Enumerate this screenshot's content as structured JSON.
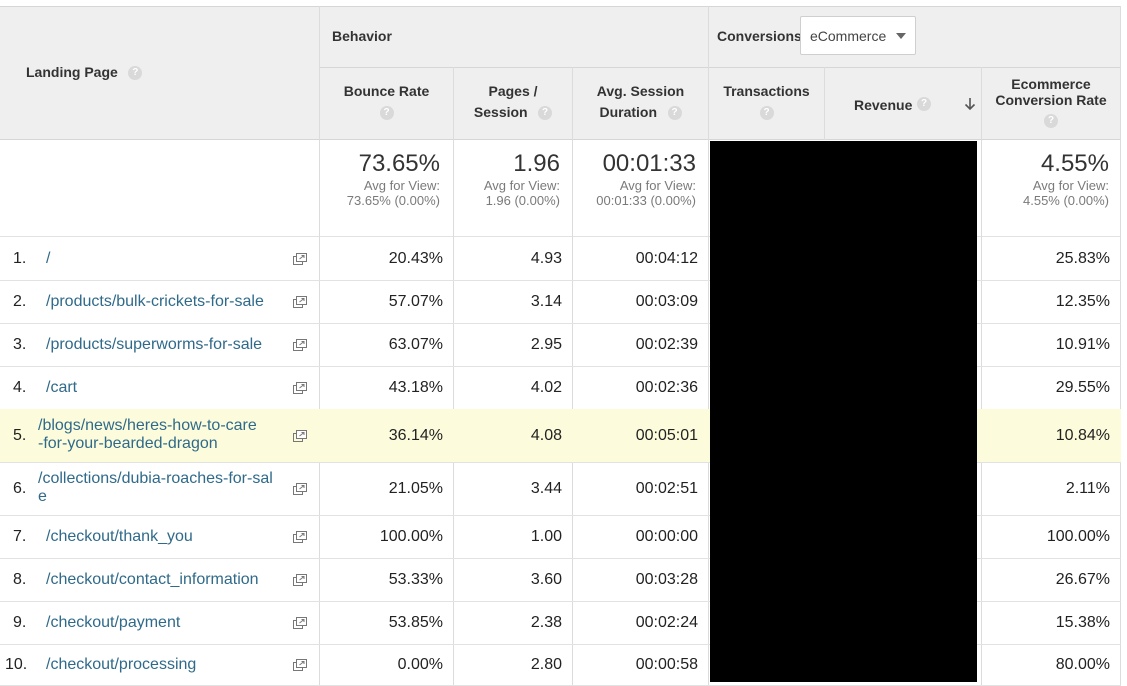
{
  "header": {
    "landing_page": "Landing Page",
    "behavior": "Behavior",
    "conversions": "Conversions",
    "conversions_dropdown": "eCommerce",
    "bounce_rate": "Bounce Rate",
    "pages_session_line1": "Pages /",
    "pages_session_line2": "Session",
    "avg_session_line1": "Avg. Session",
    "avg_session_line2": "Duration",
    "transactions": "Transactions",
    "revenue": "Revenue",
    "ecom_line1": "Ecommerce",
    "ecom_line2": "Conversion Rate",
    "help": "?"
  },
  "summary": {
    "bounce_rate": {
      "value": "73.65%",
      "avg1": "Avg for View:",
      "avg2": "73.65% (0.00%)"
    },
    "pages_session": {
      "value": "1.96",
      "avg1": "Avg for View:",
      "avg2": "1.96 (0.00%)"
    },
    "avg_duration": {
      "value": "00:01:33",
      "avg1": "Avg for View:",
      "avg2": "00:01:33 (0.00%)"
    },
    "ecom_rate": {
      "value": "4.55%",
      "avg1": "Avg for View:",
      "avg2": "4.55% (0.00%)"
    }
  },
  "rows": [
    {
      "idx": "1.",
      "page1": "/",
      "page2": "",
      "bounce": "20.43%",
      "pages": "4.93",
      "duration": "00:04:12",
      "ecom": "25.83%"
    },
    {
      "idx": "2.",
      "page1": "/products/bulk-crickets-for-sale",
      "page2": "",
      "bounce": "57.07%",
      "pages": "3.14",
      "duration": "00:03:09",
      "ecom": "12.35%"
    },
    {
      "idx": "3.",
      "page1": "/products/superworms-for-sale",
      "page2": "",
      "bounce": "63.07%",
      "pages": "2.95",
      "duration": "00:02:39",
      "ecom": "10.91%"
    },
    {
      "idx": "4.",
      "page1": "/cart",
      "page2": "",
      "bounce": "43.18%",
      "pages": "4.02",
      "duration": "00:02:36",
      "ecom": "29.55%"
    },
    {
      "idx": "5.",
      "page1": "/blogs/news/heres-how-to-care",
      "page2": "-for-your-bearded-dragon",
      "bounce": "36.14%",
      "pages": "4.08",
      "duration": "00:05:01",
      "ecom": "10.84%"
    },
    {
      "idx": "6.",
      "page1": "/collections/dubia-roaches-for-sal",
      "page2": "e",
      "bounce": "21.05%",
      "pages": "3.44",
      "duration": "00:02:51",
      "ecom": "2.11%"
    },
    {
      "idx": "7.",
      "page1": "/checkout/thank_you",
      "page2": "",
      "bounce": "100.00%",
      "pages": "1.00",
      "duration": "00:00:00",
      "ecom": "100.00%"
    },
    {
      "idx": "8.",
      "page1": "/checkout/contact_information",
      "page2": "",
      "bounce": "53.33%",
      "pages": "3.60",
      "duration": "00:03:28",
      "ecom": "26.67%"
    },
    {
      "idx": "9.",
      "page1": "/checkout/payment",
      "page2": "",
      "bounce": "53.85%",
      "pages": "2.38",
      "duration": "00:02:24",
      "ecom": "15.38%"
    },
    {
      "idx": "10.",
      "page1": "/checkout/processing",
      "page2": "",
      "bounce": "0.00%",
      "pages": "2.80",
      "duration": "00:00:58",
      "ecom": "80.00%"
    }
  ],
  "icons": {
    "help": "help-icon",
    "external": "open-in-new-window-icon",
    "sort": "sort-descending-arrow-icon",
    "dropdown": "chevron-down-icon"
  },
  "colors": {
    "header_bg": "#efefef",
    "link": "#2f6a8a",
    "highlight_row": "#fcfcdc",
    "redaction": "#000000"
  }
}
